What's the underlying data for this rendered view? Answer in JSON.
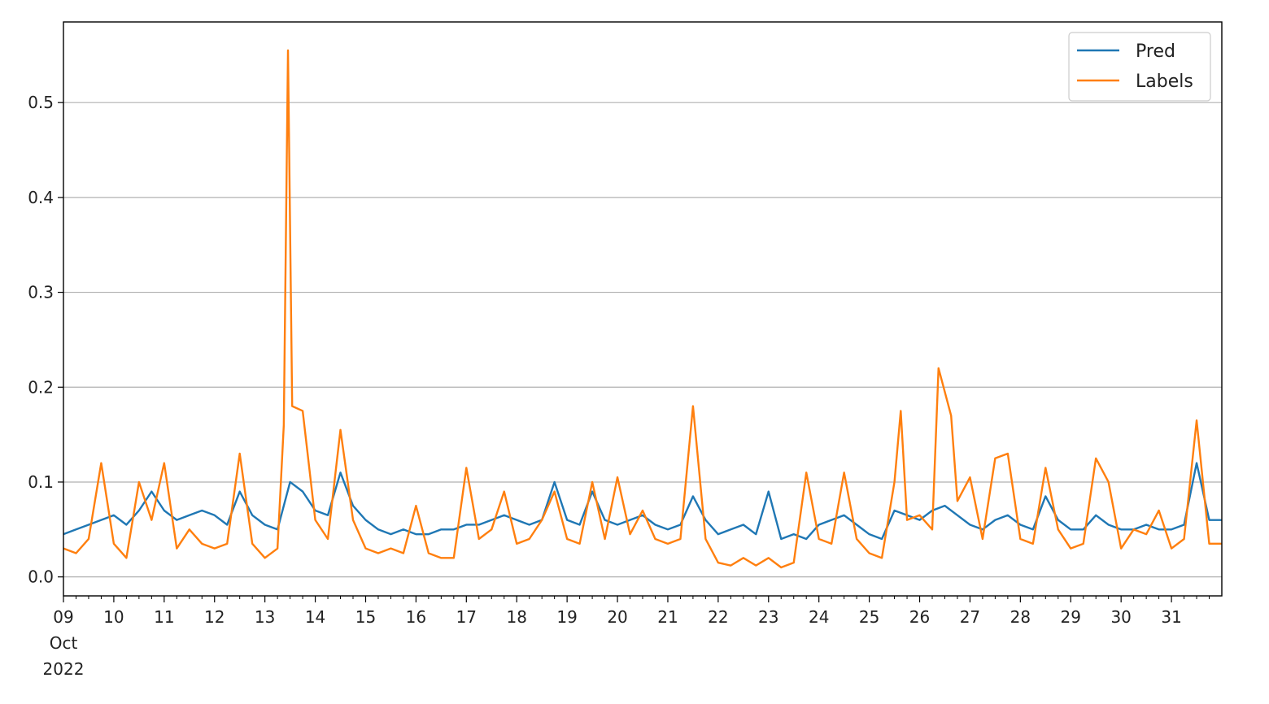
{
  "chart_data": {
    "type": "line",
    "title": "",
    "xlabel": "",
    "ylabel": "",
    "x_range": [
      "2022-10-09",
      "2022-11-01"
    ],
    "ylim": [
      -0.02,
      0.585
    ],
    "grid": {
      "y": true,
      "x": false
    },
    "legend_position": "top-right",
    "y_ticks": [
      {
        "value": 0.0,
        "label": "0.0"
      },
      {
        "value": 0.1,
        "label": "0.1"
      },
      {
        "value": 0.2,
        "label": "0.2"
      },
      {
        "value": 0.3,
        "label": "0.3"
      },
      {
        "value": 0.4,
        "label": "0.4"
      },
      {
        "value": 0.5,
        "label": "0.5"
      }
    ],
    "x_ticks": [
      {
        "date": "2022-10-09",
        "label": "09",
        "month_label": "Oct",
        "year_label": "2022"
      },
      {
        "date": "2022-10-10",
        "label": "10"
      },
      {
        "date": "2022-10-11",
        "label": "11"
      },
      {
        "date": "2022-10-12",
        "label": "12"
      },
      {
        "date": "2022-10-13",
        "label": "13"
      },
      {
        "date": "2022-10-14",
        "label": "14"
      },
      {
        "date": "2022-10-15",
        "label": "15"
      },
      {
        "date": "2022-10-16",
        "label": "16"
      },
      {
        "date": "2022-10-17",
        "label": "17"
      },
      {
        "date": "2022-10-18",
        "label": "18"
      },
      {
        "date": "2022-10-19",
        "label": "19"
      },
      {
        "date": "2022-10-20",
        "label": "20"
      },
      {
        "date": "2022-10-21",
        "label": "21"
      },
      {
        "date": "2022-10-22",
        "label": "22"
      },
      {
        "date": "2022-10-23",
        "label": "23"
      },
      {
        "date": "2022-10-24",
        "label": "24"
      },
      {
        "date": "2022-10-25",
        "label": "25"
      },
      {
        "date": "2022-10-26",
        "label": "26"
      },
      {
        "date": "2022-10-27",
        "label": "27"
      },
      {
        "date": "2022-10-28",
        "label": "28"
      },
      {
        "date": "2022-10-29",
        "label": "29"
      },
      {
        "date": "2022-10-30",
        "label": "30"
      },
      {
        "date": "2022-10-31",
        "label": "31"
      }
    ],
    "series": [
      {
        "name": "Pred",
        "color": "#1f77b4",
        "points": [
          [
            "2022-10-09T00:00",
            0.045
          ],
          [
            "2022-10-09T06:00",
            0.05
          ],
          [
            "2022-10-09T12:00",
            0.055
          ],
          [
            "2022-10-09T18:00",
            0.06
          ],
          [
            "2022-10-10T00:00",
            0.065
          ],
          [
            "2022-10-10T06:00",
            0.055
          ],
          [
            "2022-10-10T12:00",
            0.07
          ],
          [
            "2022-10-10T18:00",
            0.09
          ],
          [
            "2022-10-11T00:00",
            0.07
          ],
          [
            "2022-10-11T06:00",
            0.06
          ],
          [
            "2022-10-11T12:00",
            0.065
          ],
          [
            "2022-10-11T18:00",
            0.07
          ],
          [
            "2022-10-12T00:00",
            0.065
          ],
          [
            "2022-10-12T06:00",
            0.055
          ],
          [
            "2022-10-12T12:00",
            0.09
          ],
          [
            "2022-10-12T18:00",
            0.065
          ],
          [
            "2022-10-13T00:00",
            0.055
          ],
          [
            "2022-10-13T06:00",
            0.05
          ],
          [
            "2022-10-13T12:00",
            0.1
          ],
          [
            "2022-10-13T18:00",
            0.09
          ],
          [
            "2022-10-14T00:00",
            0.07
          ],
          [
            "2022-10-14T06:00",
            0.065
          ],
          [
            "2022-10-14T12:00",
            0.11
          ],
          [
            "2022-10-14T18:00",
            0.075
          ],
          [
            "2022-10-15T00:00",
            0.06
          ],
          [
            "2022-10-15T06:00",
            0.05
          ],
          [
            "2022-10-15T12:00",
            0.045
          ],
          [
            "2022-10-15T18:00",
            0.05
          ],
          [
            "2022-10-16T00:00",
            0.045
          ],
          [
            "2022-10-16T06:00",
            0.045
          ],
          [
            "2022-10-16T12:00",
            0.05
          ],
          [
            "2022-10-16T18:00",
            0.05
          ],
          [
            "2022-10-17T00:00",
            0.055
          ],
          [
            "2022-10-17T06:00",
            0.055
          ],
          [
            "2022-10-17T12:00",
            0.06
          ],
          [
            "2022-10-17T18:00",
            0.065
          ],
          [
            "2022-10-18T00:00",
            0.06
          ],
          [
            "2022-10-18T06:00",
            0.055
          ],
          [
            "2022-10-18T12:00",
            0.06
          ],
          [
            "2022-10-18T18:00",
            0.1
          ],
          [
            "2022-10-19T00:00",
            0.06
          ],
          [
            "2022-10-19T06:00",
            0.055
          ],
          [
            "2022-10-19T12:00",
            0.09
          ],
          [
            "2022-10-19T18:00",
            0.06
          ],
          [
            "2022-10-20T00:00",
            0.055
          ],
          [
            "2022-10-20T06:00",
            0.06
          ],
          [
            "2022-10-20T12:00",
            0.065
          ],
          [
            "2022-10-20T18:00",
            0.055
          ],
          [
            "2022-10-21T00:00",
            0.05
          ],
          [
            "2022-10-21T06:00",
            0.055
          ],
          [
            "2022-10-21T12:00",
            0.085
          ],
          [
            "2022-10-21T18:00",
            0.06
          ],
          [
            "2022-10-22T00:00",
            0.045
          ],
          [
            "2022-10-22T06:00",
            0.05
          ],
          [
            "2022-10-22T12:00",
            0.055
          ],
          [
            "2022-10-22T18:00",
            0.045
          ],
          [
            "2022-10-23T00:00",
            0.09
          ],
          [
            "2022-10-23T06:00",
            0.04
          ],
          [
            "2022-10-23T12:00",
            0.045
          ],
          [
            "2022-10-23T18:00",
            0.04
          ],
          [
            "2022-10-24T00:00",
            0.055
          ],
          [
            "2022-10-24T06:00",
            0.06
          ],
          [
            "2022-10-24T12:00",
            0.065
          ],
          [
            "2022-10-24T18:00",
            0.055
          ],
          [
            "2022-10-25T00:00",
            0.045
          ],
          [
            "2022-10-25T06:00",
            0.04
          ],
          [
            "2022-10-25T12:00",
            0.07
          ],
          [
            "2022-10-25T18:00",
            0.065
          ],
          [
            "2022-10-26T00:00",
            0.06
          ],
          [
            "2022-10-26T06:00",
            0.07
          ],
          [
            "2022-10-26T12:00",
            0.075
          ],
          [
            "2022-10-26T18:00",
            0.065
          ],
          [
            "2022-10-27T00:00",
            0.055
          ],
          [
            "2022-10-27T06:00",
            0.05
          ],
          [
            "2022-10-27T12:00",
            0.06
          ],
          [
            "2022-10-27T18:00",
            0.065
          ],
          [
            "2022-10-28T00:00",
            0.055
          ],
          [
            "2022-10-28T06:00",
            0.05
          ],
          [
            "2022-10-28T12:00",
            0.085
          ],
          [
            "2022-10-28T18:00",
            0.06
          ],
          [
            "2022-10-29T00:00",
            0.05
          ],
          [
            "2022-10-29T06:00",
            0.05
          ],
          [
            "2022-10-29T12:00",
            0.065
          ],
          [
            "2022-10-29T18:00",
            0.055
          ],
          [
            "2022-10-30T00:00",
            0.05
          ],
          [
            "2022-10-30T06:00",
            0.05
          ],
          [
            "2022-10-30T12:00",
            0.055
          ],
          [
            "2022-10-30T18:00",
            0.05
          ],
          [
            "2022-10-31T00:00",
            0.05
          ],
          [
            "2022-10-31T06:00",
            0.055
          ],
          [
            "2022-10-31T12:00",
            0.12
          ],
          [
            "2022-10-31T18:00",
            0.06
          ],
          [
            "2022-11-01T00:00",
            0.06
          ]
        ]
      },
      {
        "name": "Labels",
        "color": "#ff7f0e",
        "points": [
          [
            "2022-10-09T00:00",
            0.03
          ],
          [
            "2022-10-09T06:00",
            0.025
          ],
          [
            "2022-10-09T12:00",
            0.04
          ],
          [
            "2022-10-09T18:00",
            0.12
          ],
          [
            "2022-10-10T00:00",
            0.035
          ],
          [
            "2022-10-10T06:00",
            0.02
          ],
          [
            "2022-10-10T12:00",
            0.1
          ],
          [
            "2022-10-10T18:00",
            0.06
          ],
          [
            "2022-10-11T00:00",
            0.12
          ],
          [
            "2022-10-11T06:00",
            0.03
          ],
          [
            "2022-10-11T12:00",
            0.05
          ],
          [
            "2022-10-11T18:00",
            0.035
          ],
          [
            "2022-10-12T00:00",
            0.03
          ],
          [
            "2022-10-12T06:00",
            0.035
          ],
          [
            "2022-10-12T12:00",
            0.13
          ],
          [
            "2022-10-12T18:00",
            0.035
          ],
          [
            "2022-10-13T00:00",
            0.02
          ],
          [
            "2022-10-13T06:00",
            0.03
          ],
          [
            "2022-10-13T09:00",
            0.16
          ],
          [
            "2022-10-13T11:00",
            0.555
          ],
          [
            "2022-10-13T13:00",
            0.18
          ],
          [
            "2022-10-13T18:00",
            0.175
          ],
          [
            "2022-10-14T00:00",
            0.06
          ],
          [
            "2022-10-14T06:00",
            0.04
          ],
          [
            "2022-10-14T12:00",
            0.155
          ],
          [
            "2022-10-14T18:00",
            0.06
          ],
          [
            "2022-10-15T00:00",
            0.03
          ],
          [
            "2022-10-15T06:00",
            0.025
          ],
          [
            "2022-10-15T12:00",
            0.03
          ],
          [
            "2022-10-15T18:00",
            0.025
          ],
          [
            "2022-10-16T00:00",
            0.075
          ],
          [
            "2022-10-16T06:00",
            0.025
          ],
          [
            "2022-10-16T12:00",
            0.02
          ],
          [
            "2022-10-16T18:00",
            0.02
          ],
          [
            "2022-10-17T00:00",
            0.115
          ],
          [
            "2022-10-17T06:00",
            0.04
          ],
          [
            "2022-10-17T12:00",
            0.05
          ],
          [
            "2022-10-17T18:00",
            0.09
          ],
          [
            "2022-10-18T00:00",
            0.035
          ],
          [
            "2022-10-18T06:00",
            0.04
          ],
          [
            "2022-10-18T12:00",
            0.06
          ],
          [
            "2022-10-18T18:00",
            0.09
          ],
          [
            "2022-10-19T00:00",
            0.04
          ],
          [
            "2022-10-19T06:00",
            0.035
          ],
          [
            "2022-10-19T12:00",
            0.1
          ],
          [
            "2022-10-19T18:00",
            0.04
          ],
          [
            "2022-10-20T00:00",
            0.105
          ],
          [
            "2022-10-20T06:00",
            0.045
          ],
          [
            "2022-10-20T12:00",
            0.07
          ],
          [
            "2022-10-20T18:00",
            0.04
          ],
          [
            "2022-10-21T00:00",
            0.035
          ],
          [
            "2022-10-21T06:00",
            0.04
          ],
          [
            "2022-10-21T12:00",
            0.18
          ],
          [
            "2022-10-21T18:00",
            0.04
          ],
          [
            "2022-10-22T00:00",
            0.015
          ],
          [
            "2022-10-22T06:00",
            0.012
          ],
          [
            "2022-10-22T12:00",
            0.02
          ],
          [
            "2022-10-22T18:00",
            0.012
          ],
          [
            "2022-10-23T00:00",
            0.02
          ],
          [
            "2022-10-23T06:00",
            0.01
          ],
          [
            "2022-10-23T12:00",
            0.015
          ],
          [
            "2022-10-23T18:00",
            0.11
          ],
          [
            "2022-10-24T00:00",
            0.04
          ],
          [
            "2022-10-24T06:00",
            0.035
          ],
          [
            "2022-10-24T12:00",
            0.11
          ],
          [
            "2022-10-24T18:00",
            0.04
          ],
          [
            "2022-10-25T00:00",
            0.025
          ],
          [
            "2022-10-25T06:00",
            0.02
          ],
          [
            "2022-10-25T12:00",
            0.1
          ],
          [
            "2022-10-25T15:00",
            0.175
          ],
          [
            "2022-10-25T18:00",
            0.06
          ],
          [
            "2022-10-26T00:00",
            0.065
          ],
          [
            "2022-10-26T06:00",
            0.05
          ],
          [
            "2022-10-26T09:00",
            0.22
          ],
          [
            "2022-10-26T15:00",
            0.17
          ],
          [
            "2022-10-26T18:00",
            0.08
          ],
          [
            "2022-10-27T00:00",
            0.105
          ],
          [
            "2022-10-27T06:00",
            0.04
          ],
          [
            "2022-10-27T12:00",
            0.125
          ],
          [
            "2022-10-27T18:00",
            0.13
          ],
          [
            "2022-10-28T00:00",
            0.04
          ],
          [
            "2022-10-28T06:00",
            0.035
          ],
          [
            "2022-10-28T12:00",
            0.115
          ],
          [
            "2022-10-28T18:00",
            0.05
          ],
          [
            "2022-10-29T00:00",
            0.03
          ],
          [
            "2022-10-29T06:00",
            0.035
          ],
          [
            "2022-10-29T12:00",
            0.125
          ],
          [
            "2022-10-29T18:00",
            0.1
          ],
          [
            "2022-10-30T00:00",
            0.03
          ],
          [
            "2022-10-30T06:00",
            0.05
          ],
          [
            "2022-10-30T12:00",
            0.045
          ],
          [
            "2022-10-30T18:00",
            0.07
          ],
          [
            "2022-10-31T00:00",
            0.03
          ],
          [
            "2022-10-31T06:00",
            0.04
          ],
          [
            "2022-10-31T12:00",
            0.165
          ],
          [
            "2022-10-31T18:00",
            0.035
          ],
          [
            "2022-11-01T00:00",
            0.035
          ]
        ]
      }
    ]
  }
}
